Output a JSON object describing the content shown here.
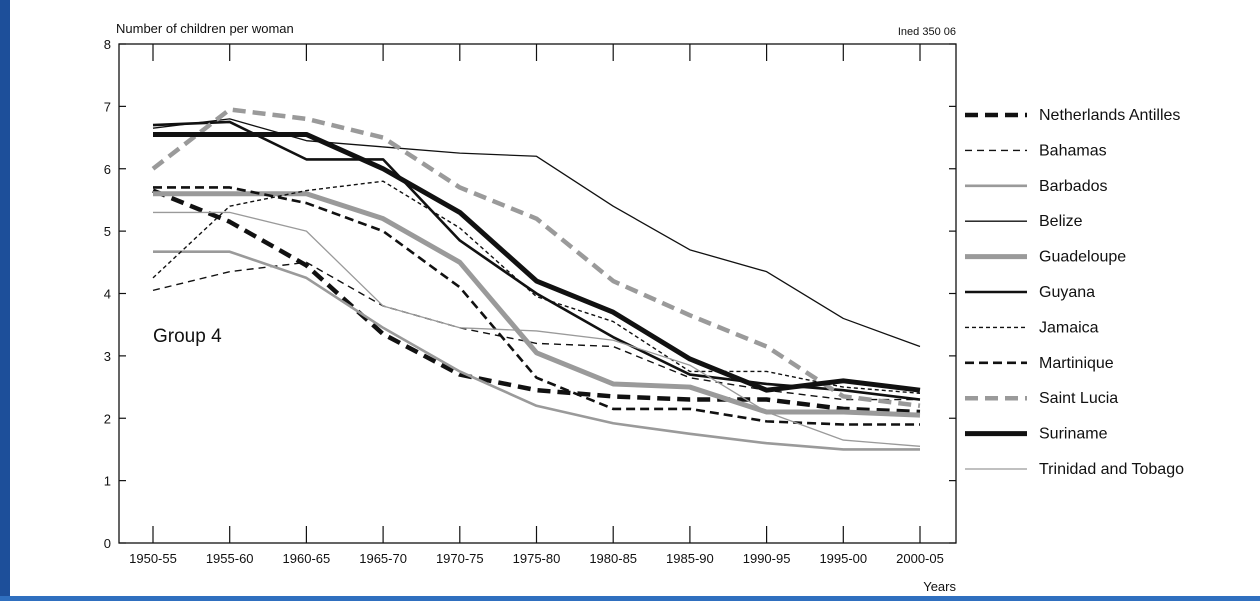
{
  "chart_data": {
    "type": "line",
    "title": "",
    "ylabel": "Number of children per woman",
    "xlabel": "Years",
    "source": "Ined 350 06",
    "annotation": "Group 4",
    "ylim": [
      0,
      8
    ],
    "yticks": [
      0,
      1,
      2,
      3,
      4,
      5,
      6,
      7,
      8
    ],
    "grid": false,
    "legend_position": "right",
    "categories": [
      "1950-55",
      "1955-60",
      "1960-65",
      "1965-70",
      "1970-75",
      "1975-80",
      "1980-85",
      "1985-90",
      "1990-95",
      "1995-00",
      "2000-05"
    ],
    "series": [
      {
        "name": "Netherlands Antilles",
        "style": "dash-thick",
        "color": "#111111",
        "values": [
          5.65,
          5.15,
          4.45,
          3.35,
          2.7,
          2.45,
          2.35,
          2.3,
          2.3,
          2.15,
          2.1
        ]
      },
      {
        "name": "Bahamas",
        "style": "dash-thin",
        "color": "#111111",
        "values": [
          4.05,
          4.35,
          4.5,
          3.8,
          3.45,
          3.2,
          3.15,
          2.65,
          2.45,
          2.3,
          2.3
        ]
      },
      {
        "name": "Barbados",
        "style": "solid-medium",
        "color": "#9a9a9a",
        "values": [
          4.67,
          4.67,
          4.25,
          3.45,
          2.75,
          2.2,
          1.92,
          1.75,
          1.6,
          1.5,
          1.5
        ]
      },
      {
        "name": "Belize",
        "style": "solid-thin",
        "color": "#111111",
        "values": [
          6.65,
          6.8,
          6.45,
          6.35,
          6.25,
          6.2,
          5.4,
          4.7,
          4.35,
          3.6,
          3.15
        ]
      },
      {
        "name": "Guadeloupe",
        "style": "solid-thick",
        "color": "#9a9a9a",
        "values": [
          5.6,
          5.6,
          5.6,
          5.2,
          4.5,
          3.05,
          2.55,
          2.5,
          2.1,
          2.1,
          2.05
        ]
      },
      {
        "name": "Guyana",
        "style": "solid-medium",
        "color": "#111111",
        "values": [
          6.7,
          6.75,
          6.15,
          6.15,
          4.85,
          4.0,
          3.3,
          2.7,
          2.55,
          2.45,
          2.3
        ]
      },
      {
        "name": "Jamaica",
        "style": "dash-fine",
        "color": "#111111",
        "values": [
          4.25,
          5.4,
          5.65,
          5.8,
          5.05,
          3.95,
          3.55,
          2.75,
          2.75,
          2.5,
          2.4
        ]
      },
      {
        "name": "Martinique",
        "style": "dash-medium",
        "color": "#111111",
        "values": [
          5.7,
          5.7,
          5.45,
          5.0,
          4.1,
          2.65,
          2.15,
          2.15,
          1.95,
          1.9,
          1.9
        ]
      },
      {
        "name": "Saint Lucia",
        "style": "dash-thick",
        "color": "#9a9a9a",
        "values": [
          6.0,
          6.95,
          6.8,
          6.5,
          5.7,
          5.2,
          4.2,
          3.65,
          3.15,
          2.35,
          2.2
        ]
      },
      {
        "name": "Suriname",
        "style": "solid-thick",
        "color": "#111111",
        "values": [
          6.55,
          6.55,
          6.55,
          6.0,
          5.3,
          4.2,
          3.7,
          2.95,
          2.45,
          2.6,
          2.45
        ]
      },
      {
        "name": "Trinidad and Tobago",
        "style": "solid-thin",
        "color": "#9a9a9a",
        "values": [
          5.3,
          5.3,
          5.0,
          3.8,
          3.45,
          3.4,
          3.25,
          2.85,
          2.1,
          1.65,
          1.55
        ]
      }
    ]
  }
}
